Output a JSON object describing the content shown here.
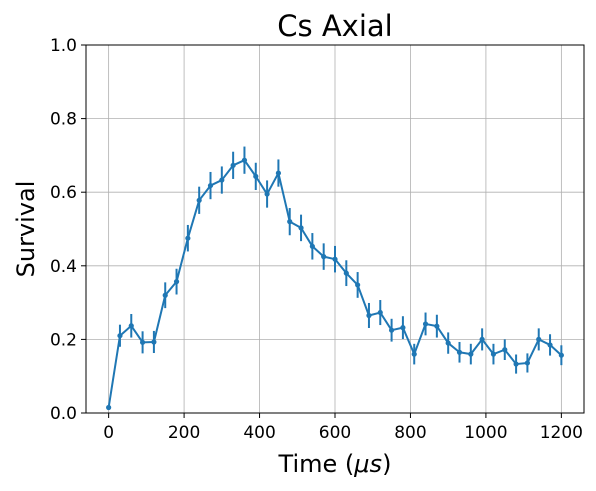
{
  "chart_data": {
    "type": "line",
    "title": "Cs Axial",
    "xlabel": "Time (μs)",
    "ylabel": "Survival",
    "xlim": [
      -60,
      1260
    ],
    "ylim": [
      0.0,
      1.0
    ],
    "xticks": [
      "0",
      "200",
      "400",
      "600",
      "800",
      "1000",
      "1200"
    ],
    "xtick_values": [
      0,
      200,
      400,
      600,
      800,
      1000,
      1200
    ],
    "yticks": [
      "0.0",
      "0.2",
      "0.4",
      "0.6",
      "0.8",
      "1.0"
    ],
    "ytick_values": [
      0.0,
      0.2,
      0.4,
      0.6,
      0.8,
      1.0
    ],
    "grid": true,
    "color": "#1f77b4",
    "series": [
      {
        "x": [
          0,
          30,
          60,
          90,
          120,
          150,
          180,
          210,
          240,
          270,
          300,
          330,
          360,
          390,
          420,
          450,
          480,
          510,
          540,
          570,
          600,
          630,
          660,
          690,
          720,
          750,
          780,
          810,
          840,
          870,
          900,
          930,
          960,
          990,
          1020,
          1050,
          1080,
          1110,
          1140,
          1170,
          1200
        ],
        "y": [
          0.015,
          0.21,
          0.237,
          0.192,
          0.193,
          0.32,
          0.357,
          0.475,
          0.578,
          0.618,
          0.633,
          0.673,
          0.687,
          0.643,
          0.595,
          0.652,
          0.52,
          0.503,
          0.453,
          0.425,
          0.418,
          0.38,
          0.348,
          0.265,
          0.273,
          0.225,
          0.232,
          0.16,
          0.242,
          0.236,
          0.19,
          0.165,
          0.16,
          0.2,
          0.16,
          0.172,
          0.133,
          0.136,
          0.2,
          0.185,
          0.157
        ],
        "yerr": [
          0.0,
          0.03,
          0.032,
          0.03,
          0.03,
          0.035,
          0.035,
          0.036,
          0.037,
          0.037,
          0.037,
          0.037,
          0.037,
          0.037,
          0.037,
          0.037,
          0.037,
          0.036,
          0.036,
          0.036,
          0.036,
          0.035,
          0.035,
          0.034,
          0.034,
          0.031,
          0.031,
          0.028,
          0.031,
          0.031,
          0.029,
          0.028,
          0.028,
          0.03,
          0.028,
          0.028,
          0.026,
          0.026,
          0.03,
          0.029,
          0.027
        ]
      }
    ]
  }
}
